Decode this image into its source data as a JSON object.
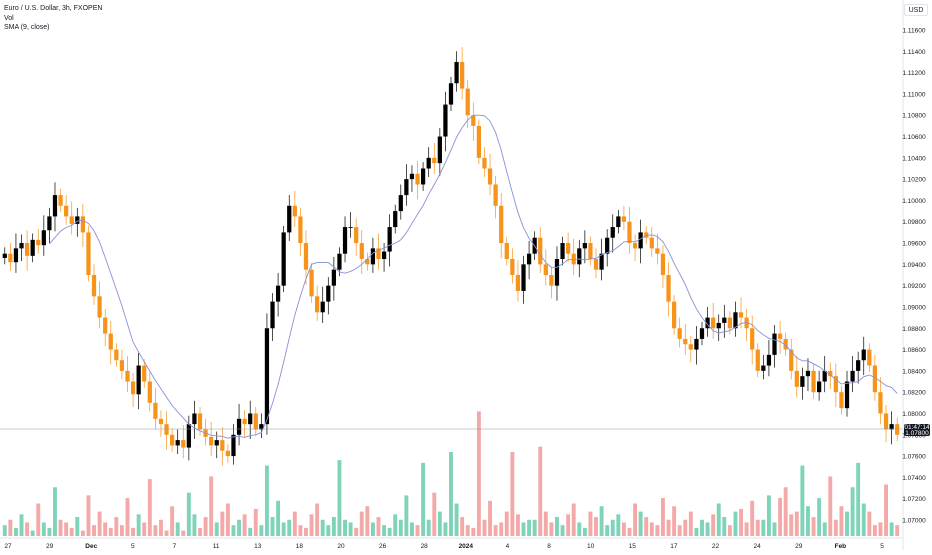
{
  "legend": {
    "symbol": "Euro / U.S. Dollar, 3h, FXOPEN",
    "vol": "Vol",
    "sma": "SMA (9, close)"
  },
  "currency": "USD",
  "last_price": {
    "countdown": "01:47:14",
    "price": "1.07800"
  },
  "colors": {
    "up": "#000000",
    "down": "#f7931a",
    "vol_up": "#7ed3b8",
    "vol_down": "#f4a9a9",
    "sma": "#8791d6",
    "grid": "#f0f3fa",
    "text": "#131722"
  },
  "chart_data": {
    "type": "candlestick",
    "title": "Euro / U.S. Dollar, 3h, FXOPEN",
    "ylim": [
      1.068,
      1.118
    ],
    "y_ticks": [
      "1.11600",
      "1.11400",
      "1.11200",
      "1.11000",
      "1.10800",
      "1.10600",
      "1.10400",
      "1.10200",
      "1.10000",
      "1.09800",
      "1.09600",
      "1.09400",
      "1.09200",
      "1.09000",
      "1.08800",
      "1.08600",
      "1.08400",
      "1.08200",
      "1.08000",
      "1.07800",
      "1.07600",
      "1.07400",
      "1.07200",
      "1.07000"
    ],
    "x_ticks": [
      "27",
      "29",
      "Dec",
      "5",
      "7",
      "11",
      "13",
      "18",
      "20",
      "26",
      "28",
      "2024",
      "4",
      "8",
      "10",
      "15",
      "17",
      "22",
      "24",
      "29",
      "Feb",
      "5"
    ],
    "series": [
      {
        "name": "Euro / U.S. Dollar",
        "closes": [
          1.095,
          1.0942,
          1.0955,
          1.096,
          1.0948,
          1.0963,
          1.0958,
          1.0972,
          1.0985,
          1.1005,
          1.0995,
          1.0985,
          1.0978,
          1.0985,
          1.097,
          1.093,
          1.091,
          1.089,
          1.0875,
          1.086,
          1.085,
          1.084,
          1.083,
          1.0818,
          1.0845,
          1.083,
          1.081,
          1.0795,
          1.079,
          1.078,
          1.077,
          1.0775,
          1.0768,
          1.079,
          1.08,
          1.0785,
          1.0778,
          1.077,
          1.0775,
          1.0765,
          1.076,
          1.078,
          1.0795,
          1.079,
          1.08,
          1.0785,
          1.079,
          1.088,
          1.0905,
          1.092,
          1.097,
          1.0995,
          1.0985,
          1.096,
          1.0935,
          1.091,
          1.0895,
          1.0905,
          1.092,
          1.0935,
          1.095,
          1.0975,
          1.0975,
          1.096,
          1.0945,
          1.094,
          1.0955,
          1.0945,
          1.0952,
          1.0975,
          1.099,
          1.1005,
          1.102,
          1.1025,
          1.1015,
          1.103,
          1.104,
          1.1035,
          1.106,
          1.109,
          1.111,
          1.113,
          1.1105,
          1.108,
          1.107,
          1.104,
          1.103,
          1.1015,
          1.0995,
          1.096,
          1.0945,
          1.093,
          1.0915,
          1.094,
          1.095,
          1.0965,
          1.094,
          1.093,
          1.092,
          1.0945,
          1.096,
          1.095,
          1.094,
          1.0955,
          1.096,
          1.0945,
          1.0935,
          1.095,
          1.0965,
          1.0975,
          1.0985,
          1.098,
          1.096,
          1.0955,
          1.097,
          1.0965,
          1.0955,
          1.095,
          1.093,
          1.0905,
          1.088,
          1.087,
          1.0865,
          1.086,
          1.087,
          1.088,
          1.089,
          1.088,
          1.0885,
          1.089,
          1.088,
          1.0895,
          1.089,
          1.088,
          1.086,
          1.084,
          1.0845,
          1.0855,
          1.0875,
          1.087,
          1.086,
          1.084,
          1.0825,
          1.0835,
          1.084,
          1.082,
          1.083,
          1.084,
          1.0835,
          1.082,
          1.0805,
          1.083,
          1.084,
          1.085,
          1.086,
          1.0845,
          1.082,
          1.08,
          1.0785,
          1.079,
          1.078
        ]
      },
      {
        "name": "Vol",
        "values": [
          4,
          6,
          3,
          8,
          5,
          2,
          12,
          5,
          3,
          18,
          6,
          5,
          3,
          7,
          2,
          15,
          4,
          9,
          5,
          3,
          7,
          4,
          14,
          3,
          8,
          5,
          21,
          4,
          6,
          2,
          11,
          5,
          2,
          16,
          8,
          3,
          7,
          22,
          5,
          9,
          12,
          4,
          6,
          8,
          3,
          10,
          4,
          26,
          7,
          13,
          5,
          6,
          9,
          4,
          3,
          8,
          12,
          6,
          4,
          7,
          28,
          6,
          5,
          3,
          9,
          11,
          5,
          7,
          4,
          3,
          8,
          6,
          15,
          5,
          4,
          27,
          6,
          16,
          9,
          5,
          31,
          12,
          7,
          4,
          3,
          46,
          6,
          13,
          4,
          5,
          9,
          31,
          8,
          5,
          6,
          6,
          33,
          9,
          5,
          7,
          4,
          8,
          12,
          5,
          3,
          9,
          7,
          11,
          4,
          6,
          8,
          5,
          3,
          12,
          9,
          7,
          5,
          4,
          14,
          6,
          11,
          4,
          6,
          9,
          3,
          6,
          5,
          8,
          12,
          7,
          4,
          9,
          10,
          5,
          13,
          6,
          6,
          15,
          5,
          14,
          18,
          8,
          9,
          26,
          11,
          7,
          14,
          5,
          22,
          6,
          11,
          9,
          18,
          27,
          12,
          9,
          4,
          5,
          19,
          5,
          4
        ]
      },
      {
        "name": "SMA (9, close)",
        "values": "moving average of closes"
      }
    ]
  }
}
